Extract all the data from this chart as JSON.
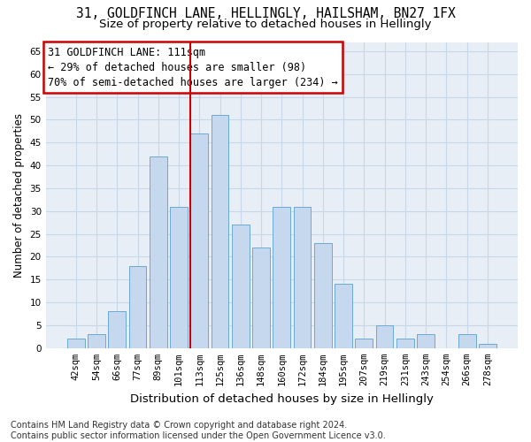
{
  "title1": "31, GOLDFINCH LANE, HELLINGLY, HAILSHAM, BN27 1FX",
  "title2": "Size of property relative to detached houses in Hellingly",
  "xlabel": "Distribution of detached houses by size in Hellingly",
  "ylabel": "Number of detached properties",
  "bar_labels": [
    "42sqm",
    "54sqm",
    "66sqm",
    "77sqm",
    "89sqm",
    "101sqm",
    "113sqm",
    "125sqm",
    "136sqm",
    "148sqm",
    "160sqm",
    "172sqm",
    "184sqm",
    "195sqm",
    "207sqm",
    "219sqm",
    "231sqm",
    "243sqm",
    "254sqm",
    "266sqm",
    "278sqm"
  ],
  "bar_values": [
    2,
    3,
    8,
    18,
    42,
    31,
    47,
    51,
    27,
    22,
    31,
    31,
    23,
    14,
    2,
    5,
    2,
    3,
    0,
    3,
    1
  ],
  "bar_color": "#c5d8ed",
  "bar_edge_color": "#6aaad4",
  "vline_bar_index": 6,
  "vline_color": "#cc0000",
  "annotation_text": "31 GOLDFINCH LANE: 111sqm\n← 29% of detached houses are smaller (98)\n70% of semi-detached houses are larger (234) →",
  "annotation_box_color": "#ffffff",
  "annotation_box_edge": "#cc0000",
  "ylim_max": 67,
  "yticks": [
    0,
    5,
    10,
    15,
    20,
    25,
    30,
    35,
    40,
    45,
    50,
    55,
    60,
    65
  ],
  "grid_color": "#c8d8e8",
  "plot_bg_color": "#e8eef5",
  "footnote": "Contains HM Land Registry data © Crown copyright and database right 2024.\nContains public sector information licensed under the Open Government Licence v3.0.",
  "title1_fontsize": 10.5,
  "title2_fontsize": 9.5,
  "xlabel_fontsize": 9.5,
  "ylabel_fontsize": 8.5,
  "tick_fontsize": 7.5,
  "annot_fontsize": 8.5,
  "footnote_fontsize": 7
}
